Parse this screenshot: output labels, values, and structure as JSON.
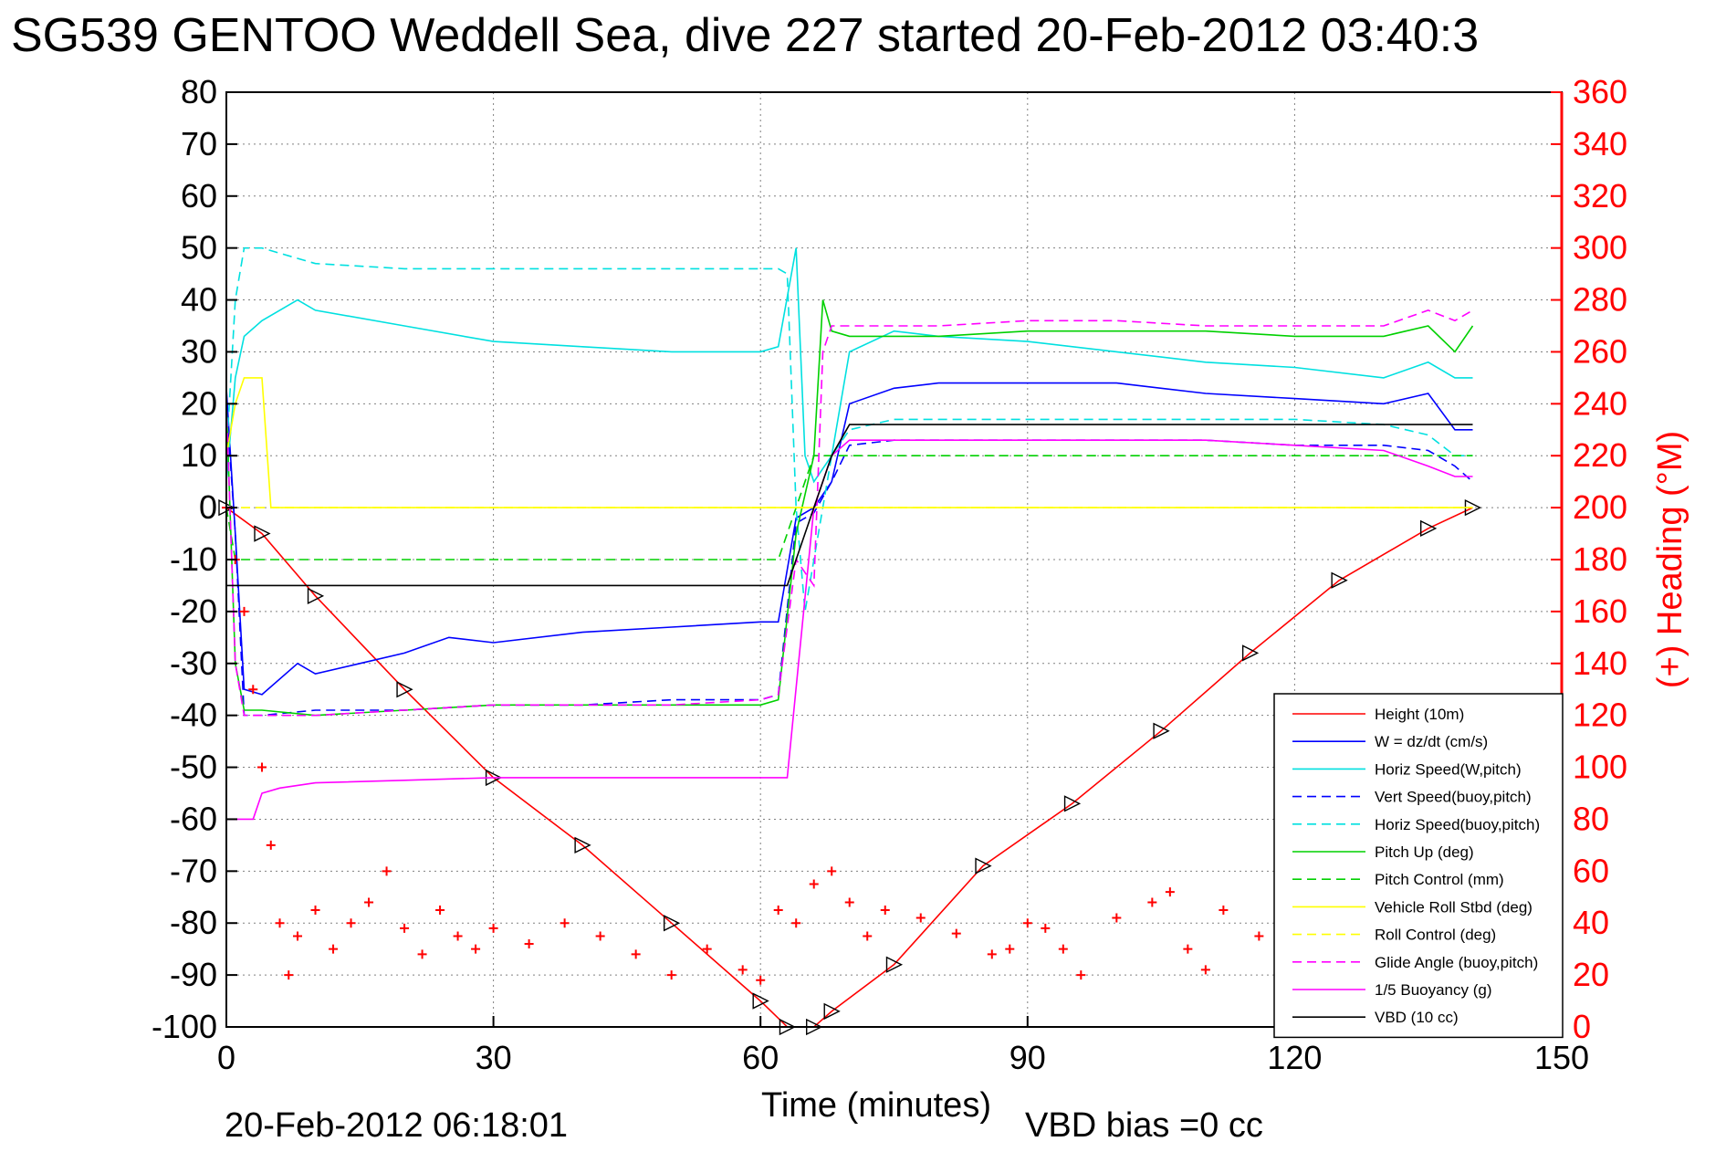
{
  "chart_data": {
    "type": "line",
    "title": "SG539 GENTOO Weddell Sea, dive 227 started 20-Feb-2012 03:40:3",
    "xlabel": "Time (minutes)",
    "ylabel": "",
    "y2label": "(+) Heading (°M)",
    "xlim": [
      0,
      150
    ],
    "ylim": [
      -100,
      80
    ],
    "y2lim": [
      0,
      360
    ],
    "xticks": [
      0,
      30,
      60,
      90,
      120,
      150
    ],
    "yticks": [
      80,
      70,
      60,
      50,
      40,
      30,
      20,
      10,
      0,
      -10,
      -20,
      -30,
      -40,
      -50,
      -60,
      -70,
      -80,
      -90,
      -100
    ],
    "y2ticks": [
      360,
      340,
      320,
      300,
      280,
      260,
      240,
      220,
      200,
      180,
      160,
      140,
      120,
      100,
      80,
      60,
      40,
      20,
      0
    ],
    "grid": true,
    "legend_position": "bottom-right",
    "footer_left": "20-Feb-2012 06:18:01",
    "footer_right": "VBD bias =0 cc",
    "series": [
      {
        "name": "Height (10m)",
        "color": "#ff0000",
        "style": "solid",
        "x": [
          0,
          4,
          10,
          20,
          30,
          40,
          50,
          60,
          63,
          66,
          68,
          75,
          85,
          95,
          105,
          115,
          125,
          135,
          140
        ],
        "values": [
          0,
          -5,
          -17,
          -35,
          -52,
          -65,
          -80,
          -95,
          -100,
          -100,
          -97,
          -88,
          -69,
          -57,
          -43,
          -28,
          -14,
          -4,
          0
        ]
      },
      {
        "name": "W = dz/dt (cm/s)",
        "color": "#0000ff",
        "style": "solid",
        "x": [
          0,
          1,
          2,
          4,
          8,
          10,
          15,
          20,
          25,
          30,
          40,
          50,
          60,
          62,
          64,
          66,
          68,
          70,
          75,
          80,
          90,
          100,
          110,
          120,
          130,
          135,
          138,
          140
        ],
        "values": [
          23,
          -5,
          -35,
          -36,
          -30,
          -32,
          -30,
          -28,
          -25,
          -26,
          -24,
          -23,
          -22,
          -22,
          -2,
          0,
          5,
          20,
          23,
          24,
          24,
          24,
          22,
          21,
          20,
          22,
          15,
          15
        ]
      },
      {
        "name": "Horiz Speed(W,pitch)",
        "color": "#00e0e0",
        "style": "solid",
        "x": [
          0,
          1,
          2,
          4,
          6,
          8,
          10,
          20,
          30,
          40,
          50,
          60,
          62,
          64,
          65,
          66,
          68,
          70,
          75,
          80,
          90,
          100,
          110,
          120,
          130,
          135,
          138,
          140
        ],
        "values": [
          5,
          25,
          33,
          36,
          38,
          40,
          38,
          35,
          32,
          31,
          30,
          30,
          31,
          50,
          10,
          5,
          10,
          30,
          34,
          33,
          32,
          30,
          28,
          27,
          25,
          28,
          25,
          25
        ]
      },
      {
        "name": "Vert Speed(buoy,pitch)",
        "color": "#0000ff",
        "style": "dashed",
        "x": [
          0,
          1,
          2,
          4,
          10,
          20,
          30,
          40,
          50,
          60,
          62,
          64,
          66,
          68,
          70,
          75,
          80,
          90,
          100,
          110,
          120,
          130,
          135,
          138,
          140
        ],
        "values": [
          20,
          -5,
          -40,
          -40,
          -39,
          -39,
          -38,
          -38,
          -37,
          -37,
          -36,
          -3,
          -1,
          5,
          12,
          13,
          13,
          13,
          13,
          13,
          12,
          12,
          11,
          8,
          5
        ]
      },
      {
        "name": "Horiz Speed(buoy,pitch)",
        "color": "#00e0e0",
        "style": "dashed",
        "x": [
          0,
          1,
          2,
          4,
          6,
          10,
          20,
          30,
          40,
          50,
          60,
          62,
          63,
          64,
          65,
          68,
          70,
          75,
          80,
          90,
          100,
          110,
          120,
          130,
          135,
          138,
          140
        ],
        "values": [
          10,
          40,
          50,
          50,
          49,
          47,
          46,
          46,
          46,
          46,
          46,
          46,
          45,
          0,
          -20,
          10,
          15,
          17,
          17,
          17,
          17,
          17,
          17,
          16,
          14,
          10,
          10
        ]
      },
      {
        "name": "Pitch Up (deg)",
        "color": "#00d000",
        "style": "solid",
        "x": [
          0,
          1,
          2,
          4,
          10,
          20,
          30,
          40,
          50,
          60,
          62,
          64,
          66,
          67,
          68,
          70,
          75,
          80,
          90,
          100,
          110,
          120,
          130,
          135,
          138,
          140
        ],
        "values": [
          20,
          -30,
          -39,
          -39,
          -40,
          -39,
          -38,
          -38,
          -38,
          -38,
          -37,
          -5,
          10,
          40,
          34,
          33,
          33,
          33,
          34,
          34,
          34,
          33,
          33,
          35,
          30,
          35
        ]
      },
      {
        "name": "Pitch Control (mm)",
        "color": "#00d000",
        "style": "dashed",
        "x": [
          0,
          1,
          2,
          62,
          64,
          66,
          68,
          140
        ],
        "values": [
          0,
          -10,
          -10,
          -10,
          0,
          10,
          10,
          10
        ]
      },
      {
        "name": "Vehicle Roll Stbd (deg)",
        "color": "#ffff00",
        "style": "solid",
        "x": [
          0,
          1,
          2,
          4,
          5,
          6,
          8,
          10,
          20,
          30,
          40,
          50,
          60,
          64,
          66,
          68,
          70,
          80,
          90,
          100,
          110,
          120,
          130,
          135,
          138,
          140
        ],
        "values": [
          10,
          20,
          25,
          25,
          0,
          0,
          0,
          0,
          0,
          0,
          0,
          0,
          0,
          0,
          0,
          0,
          0,
          0,
          0,
          0,
          0,
          0,
          0,
          0,
          0,
          0
        ]
      },
      {
        "name": "Roll Control (deg)",
        "color": "#ffff00",
        "style": "dashed",
        "x": [
          0,
          140
        ],
        "values": [
          0,
          0
        ]
      },
      {
        "name": "Glide Angle (buoy,pitch)",
        "color": "#ff00ff",
        "style": "dashed",
        "x": [
          0,
          1,
          2,
          4,
          10,
          20,
          30,
          40,
          50,
          60,
          62,
          64,
          66,
          67,
          68,
          70,
          75,
          80,
          90,
          100,
          110,
          120,
          130,
          135,
          138,
          140
        ],
        "values": [
          20,
          -30,
          -40,
          -40,
          -40,
          -39,
          -38,
          -38,
          -38,
          -37,
          -36,
          -10,
          -15,
          30,
          35,
          35,
          35,
          35,
          36,
          36,
          35,
          35,
          35,
          38,
          36,
          38
        ]
      },
      {
        "name": "1/5 Buoyancy (g)",
        "color": "#ff00ff",
        "style": "solid",
        "x": [
          0,
          1,
          2,
          3,
          4,
          6,
          10,
          20,
          30,
          40,
          50,
          60,
          63,
          66,
          68,
          70,
          80,
          90,
          100,
          110,
          120,
          130,
          135,
          138,
          140
        ],
        "values": [
          -60,
          -60,
          -60,
          -60,
          -55,
          -54,
          -53,
          -52.5,
          -52,
          -52,
          -52,
          -52,
          -52,
          0,
          10,
          13,
          13,
          13,
          13,
          13,
          12,
          11,
          8,
          6,
          6
        ]
      },
      {
        "name": "VBD (10 cc)",
        "color": "#000000",
        "style": "solid",
        "x": [
          0,
          2,
          63,
          66,
          68,
          70,
          140
        ],
        "values": [
          -15,
          -15,
          -15,
          0,
          10,
          16,
          16
        ]
      },
      {
        "name": "Heading",
        "color": "#ff0000",
        "style": "markers",
        "axis": "right",
        "x": [
          0,
          1,
          2,
          3,
          4,
          5,
          6,
          7,
          8,
          10,
          12,
          14,
          16,
          18,
          20,
          22,
          24,
          26,
          28,
          30,
          34,
          38,
          42,
          46,
          50,
          54,
          58,
          60,
          62,
          64,
          66,
          68,
          70,
          72,
          74,
          78,
          82,
          86,
          88,
          90,
          92,
          94,
          96,
          100,
          104,
          106,
          108,
          110,
          112,
          116,
          120,
          124,
          128,
          132
        ],
        "values": [
          200,
          180,
          160,
          130,
          100,
          70,
          40,
          20,
          35,
          45,
          30,
          40,
          48,
          60,
          38,
          28,
          45,
          35,
          30,
          38,
          32,
          40,
          35,
          28,
          20,
          30,
          22,
          18,
          45,
          40,
          55,
          60,
          48,
          35,
          45,
          42,
          36,
          28,
          30,
          40,
          38,
          30,
          20,
          42,
          48,
          52,
          30,
          22,
          45,
          35,
          28,
          30,
          32,
          20
        ]
      }
    ]
  }
}
